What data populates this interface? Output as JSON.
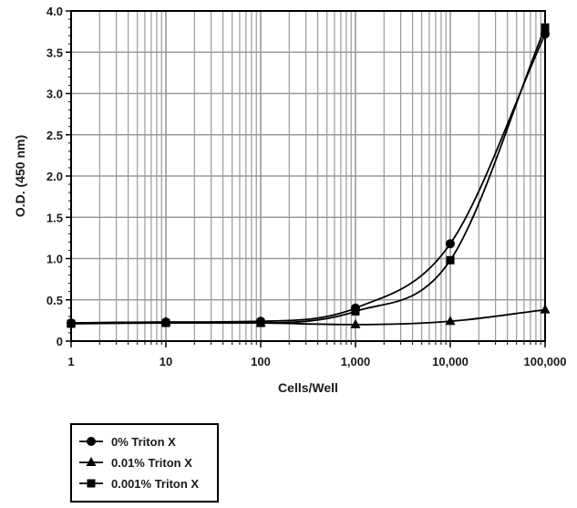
{
  "chart_data": {
    "type": "line",
    "x_scale": "log",
    "xlabel": "Cells/Well",
    "ylabel": "O.D. (450 nm)",
    "xlim": [
      1,
      100000
    ],
    "ylim": [
      0,
      4.0
    ],
    "x_ticks": [
      1,
      10,
      100,
      1000,
      10000,
      100000
    ],
    "x_tick_labels": [
      "1",
      "10",
      "100",
      "1,000",
      "10,000",
      "100,000"
    ],
    "y_ticks": [
      0,
      0.5,
      1.0,
      1.5,
      2.0,
      2.5,
      3.0,
      3.5,
      4.0
    ],
    "y_tick_labels": [
      "0",
      "0.5",
      "1.0",
      "1.5",
      "2.0",
      "2.5",
      "3.0",
      "3.5",
      "4.0"
    ],
    "grid": true,
    "legend_position": "bottom-left",
    "x": [
      1,
      10,
      100,
      1000,
      10000,
      100000
    ],
    "series": [
      {
        "name": "0% Triton X",
        "marker": "circle",
        "values": [
          0.22,
          0.23,
          0.24,
          0.4,
          1.18,
          3.72
        ]
      },
      {
        "name": "0.01% Triton X",
        "marker": "triangle",
        "values": [
          0.22,
          0.23,
          0.22,
          0.2,
          0.24,
          0.38
        ]
      },
      {
        "name": "0.001% Triton X",
        "marker": "square",
        "values": [
          0.21,
          0.22,
          0.22,
          0.36,
          0.98,
          3.8
        ]
      }
    ],
    "colors": {
      "line": "#000000",
      "grid": "#9a9a9a"
    }
  }
}
